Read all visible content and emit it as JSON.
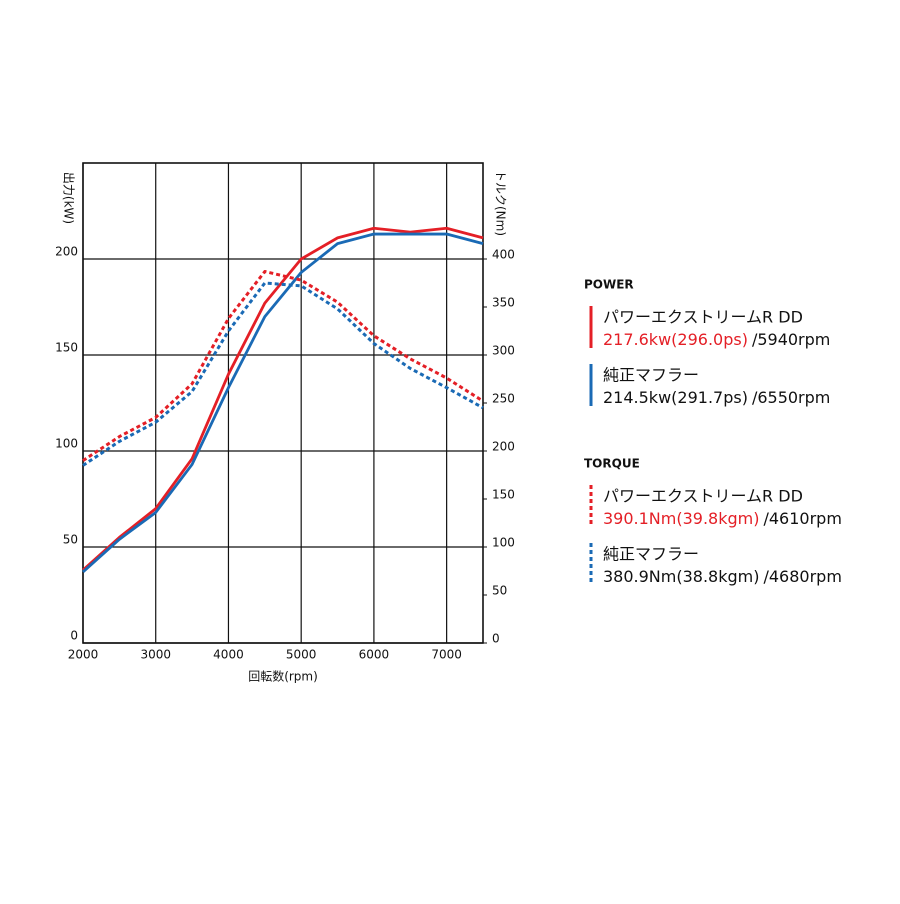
{
  "chart_data": {
    "type": "line",
    "x_label": "回転数(rpm)",
    "y_label": "出力(kW)",
    "y2_label": "トルク(Nm)",
    "xlim": [
      2000,
      7500
    ],
    "xticks": [
      2000,
      3000,
      4000,
      5000,
      6000,
      7000
    ],
    "ylim": [
      0,
      250
    ],
    "yticks": [
      0,
      50,
      100,
      150,
      200
    ],
    "y2lim": [
      0,
      500
    ],
    "y2ticks": [
      0,
      50,
      100,
      150,
      200,
      250,
      300,
      350,
      400
    ],
    "grid": true,
    "x": [
      2000,
      2500,
      3000,
      3500,
      4000,
      4500,
      5000,
      5500,
      6000,
      6500,
      7000,
      7500
    ],
    "legend_titles": [
      "POWER",
      "TORQUE"
    ],
    "legend_title_color": "#2a7a3b",
    "series": [
      {
        "name": "パワーエクストリームR DD",
        "peak": "217.6kw(296.0ps)",
        "rpm": "/5940rpm",
        "peak_color": "#e41f26",
        "color": "#e41f26",
        "style": "solid",
        "values": [
          38,
          55,
          70,
          96,
          140,
          177,
          200,
          211,
          216,
          214,
          216,
          211
        ]
      },
      {
        "name": "純正マフラー",
        "peak": "214.5kw(291.7ps)",
        "rpm": "/6550rpm",
        "peak_color": "#111111",
        "color": "#1a6ab5",
        "style": "solid",
        "values": [
          37,
          54,
          68,
          93,
          133,
          170,
          193,
          208,
          213,
          213,
          213,
          208
        ]
      },
      {
        "name": "パワーエクストリームR DD",
        "peak": "390.1Nm(39.8kgm)",
        "rpm": "/4610rpm",
        "peak_color": "#e41f26",
        "color": "#e41f26",
        "style": "dashed",
        "axis": "y2",
        "values": [
          190,
          215,
          235,
          270,
          338,
          387,
          378,
          355,
          320,
          296,
          276,
          252
        ]
      },
      {
        "name": "純正マフラー",
        "peak": "380.9Nm(38.8kgm)",
        "rpm": "/4680rpm",
        "peak_color": "#111111",
        "color": "#1a6ab5",
        "style": "dashed",
        "axis": "y2",
        "values": [
          185,
          210,
          230,
          262,
          325,
          375,
          372,
          348,
          312,
          286,
          266,
          245
        ]
      }
    ]
  }
}
